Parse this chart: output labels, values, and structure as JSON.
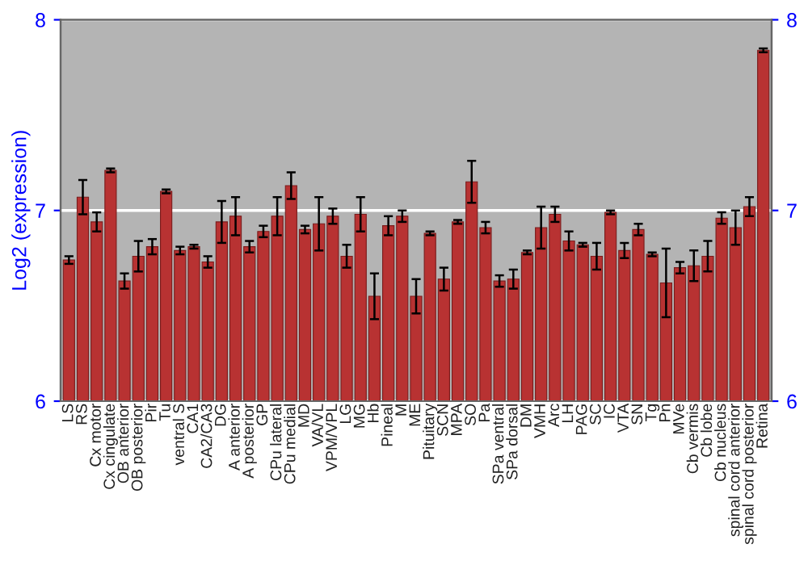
{
  "chart_data": {
    "type": "bar",
    "ylabel": "Log2 (expression)",
    "categories": [
      "LS",
      "RS",
      "Cx motor",
      "Cx cingulate",
      "OB anterior",
      "OB posterior",
      "Pir",
      "Tu",
      "ventral S",
      "CA1",
      "CA2/CA3",
      "DG",
      "A anterior",
      "A posterior",
      "GP",
      "CPu lateral",
      "CPu medial",
      "MD",
      "VA/VL",
      "VPM/VPL",
      "LG",
      "MG",
      "Hb",
      "Pineal",
      "M",
      "ME",
      "Pituitary",
      "SCN",
      "MPA",
      "SO",
      "Pa",
      "SPa ventral",
      "SPa dorsal",
      "DM",
      "VMH",
      "Arc",
      "LH",
      "PAG",
      "SC",
      "IC",
      "VTA",
      "SN",
      "Tg",
      "Pn",
      "MVe",
      "Cb vermis",
      "Cb lobe",
      "Cb nucleus",
      "spinal cord anterior",
      "spinal cord posterior",
      "Retina"
    ],
    "values": [
      6.74,
      7.07,
      6.94,
      7.21,
      6.63,
      6.76,
      6.81,
      7.1,
      6.79,
      6.81,
      6.73,
      6.94,
      6.97,
      6.81,
      6.89,
      6.97,
      7.13,
      6.9,
      6.93,
      6.97,
      6.76,
      6.98,
      6.55,
      6.92,
      6.97,
      6.55,
      6.88,
      6.64,
      6.94,
      7.15,
      6.91,
      6.63,
      6.64,
      6.78,
      6.91,
      6.98,
      6.84,
      6.82,
      6.76,
      6.99,
      6.79,
      6.9,
      6.77,
      6.62,
      6.7,
      6.71,
      6.76,
      6.96,
      6.91,
      7.02,
      7.84
    ],
    "errors": [
      0.02,
      0.09,
      0.05,
      0.01,
      0.04,
      0.08,
      0.04,
      0.01,
      0.02,
      0.01,
      0.03,
      0.11,
      0.1,
      0.03,
      0.03,
      0.1,
      0.07,
      0.02,
      0.14,
      0.04,
      0.06,
      0.09,
      0.12,
      0.05,
      0.03,
      0.09,
      0.01,
      0.06,
      0.01,
      0.11,
      0.03,
      0.03,
      0.05,
      0.01,
      0.11,
      0.04,
      0.05,
      0.01,
      0.07,
      0.01,
      0.04,
      0.03,
      0.01,
      0.18,
      0.03,
      0.08,
      0.08,
      0.03,
      0.09,
      0.05,
      0.01
    ],
    "color": "#b83232",
    "ylim": [
      6,
      8
    ],
    "yticks": [
      6,
      7,
      8
    ],
    "y2lim": [
      6,
      8
    ],
    "y2ticks": [
      6,
      7,
      8
    ],
    "grid": "y"
  }
}
